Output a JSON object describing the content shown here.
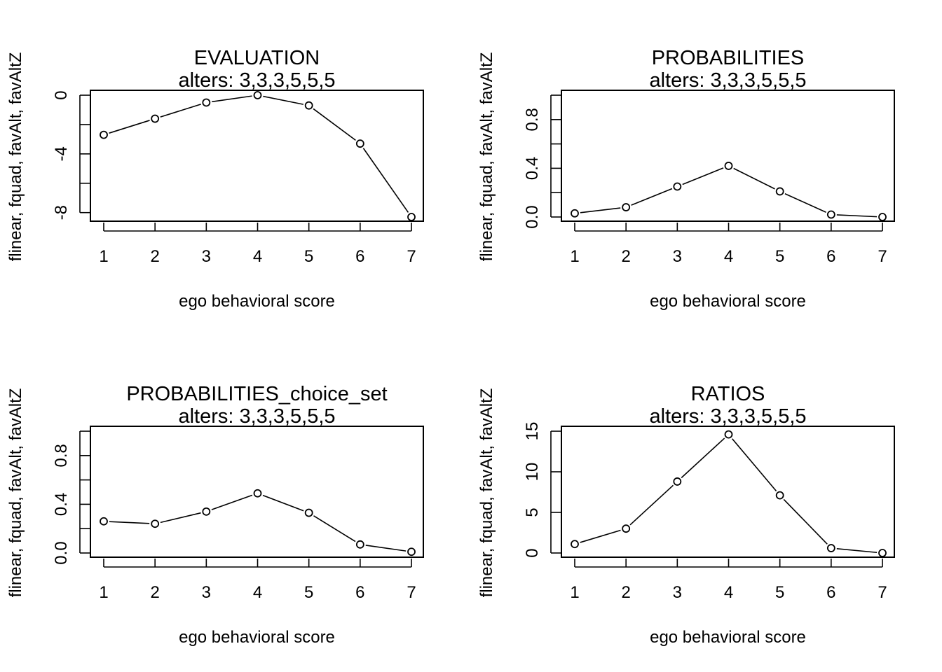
{
  "chart_data": [
    {
      "type": "line",
      "title": "EVALUATION",
      "subtitle": "alters: 3,3,3,5,5,5",
      "xlabel": "ego behavioral score",
      "ylabel": "flinear, fquad, favAlt, favAltZ",
      "x": [
        1,
        2,
        3,
        4,
        5,
        6,
        7
      ],
      "values": [
        -2.7,
        -1.6,
        -0.5,
        0.0,
        -0.7,
        -3.3,
        -8.3
      ],
      "ylim": [
        -8.3,
        0
      ],
      "yticks": [
        0,
        -2,
        -4,
        -6,
        -8
      ],
      "ytick_labels": [
        "0",
        "",
        "-4",
        "",
        "-8"
      ],
      "grid": false
    },
    {
      "type": "line",
      "title": "PROBABILITIES",
      "subtitle": "alters: 3,3,3,5,5,5",
      "xlabel": "ego behavioral score",
      "ylabel": "flinear, fquad, favAlt, favAltZ",
      "x": [
        1,
        2,
        3,
        4,
        5,
        6,
        7
      ],
      "values": [
        0.03,
        0.08,
        0.25,
        0.42,
        0.21,
        0.02,
        0.0
      ],
      "ylim": [
        0,
        1
      ],
      "yticks": [
        0.0,
        0.2,
        0.4,
        0.6,
        0.8,
        1.0
      ],
      "ytick_labels": [
        "0.0",
        "",
        "0.4",
        "",
        "0.8",
        ""
      ],
      "grid": false
    },
    {
      "type": "line",
      "title": "PROBABILITIES_choice_set",
      "subtitle": "alters: 3,3,3,5,5,5",
      "xlabel": "ego behavioral score",
      "ylabel": "flinear, fquad, favAlt, favAltZ",
      "x": [
        1,
        2,
        3,
        4,
        5,
        6,
        7
      ],
      "values": [
        0.26,
        0.24,
        0.34,
        0.49,
        0.33,
        0.07,
        0.01
      ],
      "ylim": [
        0,
        1
      ],
      "yticks": [
        0.0,
        0.2,
        0.4,
        0.6,
        0.8,
        1.0
      ],
      "ytick_labels": [
        "0.0",
        "",
        "0.4",
        "",
        "0.8",
        ""
      ],
      "grid": false
    },
    {
      "type": "line",
      "title": "RATIOS",
      "subtitle": "alters: 3,3,3,5,5,5",
      "xlabel": "ego behavioral score",
      "ylabel": "flinear, fquad, favAlt, favAltZ",
      "x": [
        1,
        2,
        3,
        4,
        5,
        6,
        7
      ],
      "values": [
        1.1,
        3.0,
        8.8,
        14.6,
        7.1,
        0.6,
        0.0
      ],
      "ylim": [
        0,
        15
      ],
      "yticks": [
        0,
        5,
        10,
        15
      ],
      "ytick_labels": [
        "0",
        "5",
        "10",
        "15"
      ],
      "grid": false
    }
  ]
}
